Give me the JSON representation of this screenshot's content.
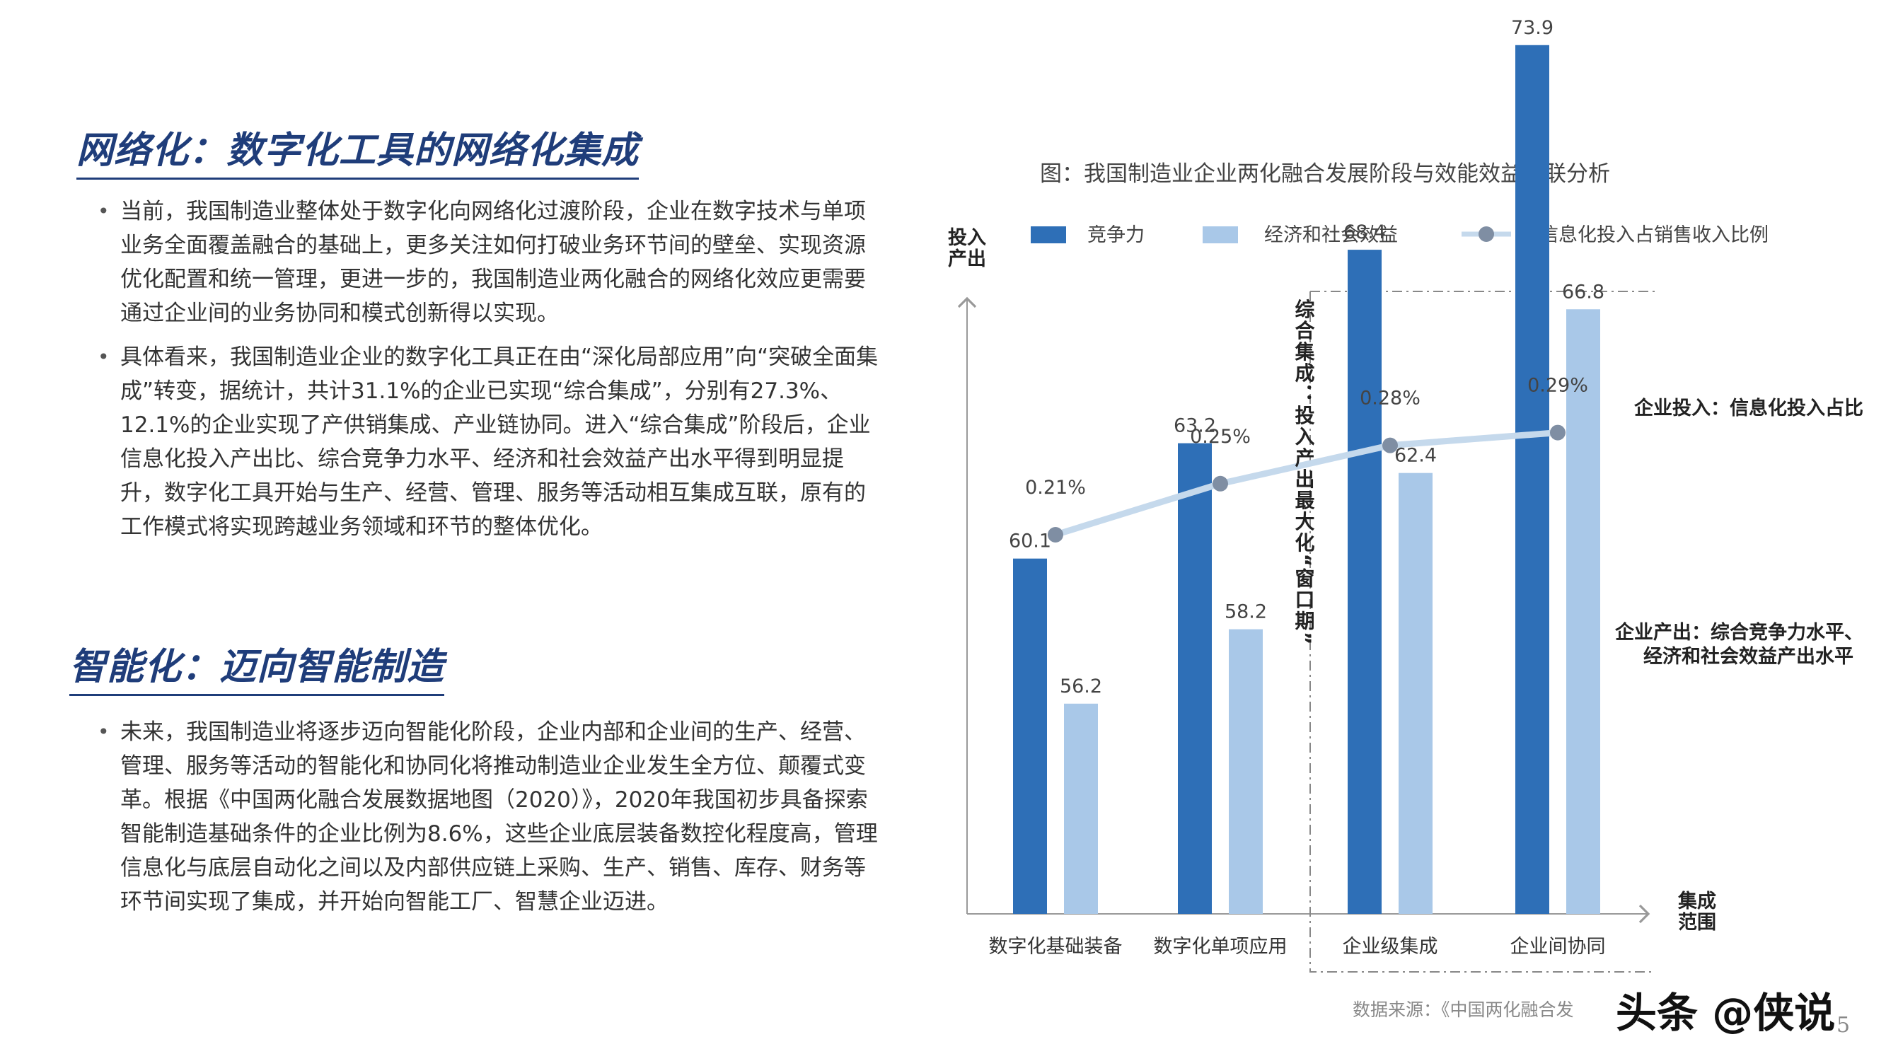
{
  "left_panel": {
    "section1": {
      "title": "网络化：数字化工具的网络化集成",
      "bullets": [
        "当前，我国制造业整体处于数字化向网络化过渡阶段，企业在数字技术与单项业务全面覆盖融合的基础上，更多关注如何打破业务环节间的壁垒、实现资源优化配置和统一管理，更进一步的，我国制造业两化融合的网络化效应更需要通过企业间的业务协同和模式创新得以实现。",
        "具体看来，我国制造业企业的数字化工具正在由“深化局部应用”向“突破全面集成”转变，据统计，共计31.1%的企业已实现“综合集成”，分别有27.3%、12.1%的企业实现了产供销集成、产业链协同。进入“综合集成”阶段后，企业信息化投入产出比、综合竞争力水平、经济和社会效益产出水平得到明显提升，数字化工具开始与生产、经营、管理、服务等活动相互集成互联，原有的工作模式将实现跨越业务领域和环节的整体优化。"
      ]
    },
    "section2": {
      "title": "智能化：迈向智能制造",
      "bullets": [
        "未来，我国制造业将逐步迈向智能化阶段，企业内部和企业间的生产、经营、管理、服务等活动的智能化和协同化将推动制造业企业发生全方位、颠覆式变革。根据《中国两化融合发展数据地图（2020）》，2020年我国初步具备探索智能制造基础条件的企业比例为8.6%，这些企业底层装备数控化程度高，管理信息化与底层自动化之间以及内部供应链上采购、生产、销售、库存、财务等环节间实现了集成，并开始向智能工厂、智慧企业迈进。"
      ]
    }
  },
  "chart_data": {
    "type": "bar",
    "title": "图：我国制造业企业两化融合发展阶段与效能效益关联分析",
    "ylabel_lines": [
      "投入",
      "产出"
    ],
    "xlabel_lines": [
      "集成",
      "范围"
    ],
    "categories": [
      "数字化基础装备",
      "数字化单项应用",
      "企业级集成",
      "企业间协同"
    ],
    "series": [
      {
        "name": "竞争力",
        "type": "bar",
        "color": "#2e6fb7",
        "values": [
          60.1,
          63.2,
          68.4,
          73.9
        ]
      },
      {
        "name": "经济和社会效益",
        "type": "bar",
        "color": "#a9c8e8",
        "values": [
          56.2,
          58.2,
          62.4,
          66.8
        ]
      },
      {
        "name": "信息化投入占销售收入比例",
        "type": "line",
        "color": "#c5d9ec",
        "marker_color": "#7f8ea3",
        "values": [
          0.21,
          0.25,
          0.28,
          0.29
        ],
        "labels": [
          "0.21%",
          "0.25%",
          "0.28%",
          "0.29%"
        ]
      }
    ],
    "bar_value_labels": {
      "竞争力": [
        "60.1",
        "63.2",
        "68.4",
        "73.9"
      ],
      "经济和社会效益": [
        "56.2",
        "58.2",
        "62.4",
        "66.8"
      ]
    },
    "legend_position": "top",
    "grid": false,
    "window_annotation": "综合集成：投入产出最大化“窗口期”",
    "annotations": {
      "input": "企业投入：信息化投入占比",
      "output_lines": [
        "企业产出：综合竞争力水平、",
        "经济和社会效益产出水平"
      ]
    }
  },
  "source_text": "数据来源：《中国两化融合发",
  "watermark": "头条 @侠说",
  "page_number": "5"
}
